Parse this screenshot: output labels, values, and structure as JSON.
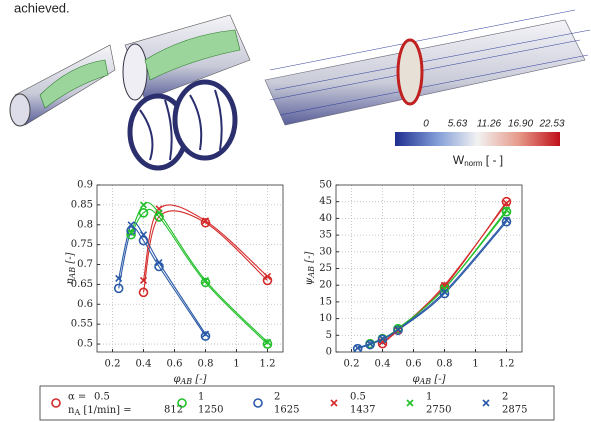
{
  "text": {
    "intro": "achieved."
  },
  "colorbar": {
    "ticks": [
      0,
      5.63,
      11.26,
      {
        "value": 16.9,
        "label": "16.90"
      },
      22.53
    ],
    "label": [
      "W",
      "norm",
      " [ - ]"
    ]
  },
  "legend": {
    "alpha_label": "α =",
    "speed_label": [
      "n",
      "A",
      " [1/min] ="
    ]
  },
  "chart_data": [
    {
      "type": "line",
      "xlabel": [
        "φ",
        "AB",
        " [-]"
      ],
      "ylabel": [
        "η",
        "AB",
        " [-]"
      ],
      "xlim": [
        0.1,
        1.3
      ],
      "ylim": [
        0.48,
        0.9
      ],
      "xticks": [
        0.2,
        0.4,
        0.6,
        0.8,
        1,
        1.2
      ],
      "yticks": [
        0.5,
        0.55,
        0.6,
        0.65,
        0.7,
        0.75,
        0.8,
        0.85,
        0.9
      ],
      "grid": true,
      "series": [
        {
          "name": "0.5",
          "speed": "812",
          "marker": "o",
          "color": "#d42a2a",
          "x": [
            0.4,
            0.5,
            0.8,
            1.2
          ],
          "values": [
            0.63,
            0.82,
            0.805,
            0.66
          ]
        },
        {
          "name": "1",
          "speed": "1250",
          "marker": "o",
          "color": "#22c02a",
          "x": [
            0.32,
            0.4,
            0.5,
            0.8,
            1.2
          ],
          "values": [
            0.775,
            0.83,
            0.82,
            0.655,
            0.5
          ]
        },
        {
          "name": "2",
          "speed": "1625",
          "marker": "o",
          "color": "#2a5aa8",
          "x": [
            0.24,
            0.32,
            0.4,
            0.5,
            0.8
          ],
          "values": [
            0.64,
            0.785,
            0.76,
            0.695,
            0.52
          ]
        },
        {
          "name": "0.5",
          "speed": "1437",
          "marker": "x",
          "color": "#d42a2a",
          "x": [
            0.4,
            0.5,
            0.8,
            1.2
          ],
          "values": [
            0.66,
            0.84,
            0.81,
            0.67
          ]
        },
        {
          "name": "1",
          "speed": "2750",
          "marker": "x",
          "color": "#22c02a",
          "x": [
            0.32,
            0.4,
            0.5,
            0.8,
            1.2
          ],
          "values": [
            0.78,
            0.85,
            0.83,
            0.66,
            0.505
          ]
        },
        {
          "name": "2",
          "speed": "2875",
          "marker": "x",
          "color": "#2a5aa8",
          "x": [
            0.24,
            0.32,
            0.4,
            0.5,
            0.8
          ],
          "values": [
            0.665,
            0.8,
            0.775,
            0.705,
            0.525
          ]
        }
      ]
    },
    {
      "type": "line",
      "xlabel": [
        "φ",
        "AB",
        " [-]"
      ],
      "ylabel": [
        "ψ",
        "AB",
        " [-]"
      ],
      "xlim": [
        0.1,
        1.3
      ],
      "ylim": [
        0,
        50
      ],
      "xticks": [
        0.2,
        0.4,
        0.6,
        0.8,
        1,
        1.2
      ],
      "yticks": [
        0,
        5,
        10,
        15,
        20,
        25,
        30,
        35,
        40,
        45,
        50
      ],
      "grid": true,
      "series": [
        {
          "name": "0.5",
          "speed": "812",
          "marker": "o",
          "color": "#d42a2a",
          "x": [
            0.4,
            0.5,
            0.8,
            1.2
          ],
          "values": [
            2.5,
            6.5,
            19.5,
            45
          ]
        },
        {
          "name": "1",
          "speed": "1250",
          "marker": "o",
          "color": "#22c02a",
          "x": [
            0.32,
            0.4,
            0.5,
            0.8,
            1.2
          ],
          "values": [
            2.5,
            4,
            7,
            19,
            42
          ]
        },
        {
          "name": "2",
          "speed": "1625",
          "marker": "o",
          "color": "#2a5aa8",
          "x": [
            0.24,
            0.32,
            0.4,
            0.5,
            0.8,
            1.2
          ],
          "values": [
            1,
            2.2,
            3.8,
            6.5,
            17.5,
            39
          ]
        },
        {
          "name": "0.5",
          "speed": "1437",
          "marker": "x",
          "color": "#d42a2a",
          "x": [
            0.4,
            0.5,
            0.8,
            1.2
          ],
          "values": [
            3,
            6.5,
            20,
            44.5
          ]
        },
        {
          "name": "1",
          "speed": "2750",
          "marker": "x",
          "color": "#22c02a",
          "x": [
            0.32,
            0.4,
            0.5,
            0.8,
            1.2
          ],
          "values": [
            2.5,
            4,
            7,
            19,
            42.5
          ]
        },
        {
          "name": "2",
          "speed": "2875",
          "marker": "x",
          "color": "#2a5aa8",
          "x": [
            0.24,
            0.32,
            0.4,
            0.5,
            0.8,
            1.2
          ],
          "values": [
            1.2,
            2.5,
            4,
            6.8,
            18,
            39.5
          ]
        }
      ]
    }
  ]
}
